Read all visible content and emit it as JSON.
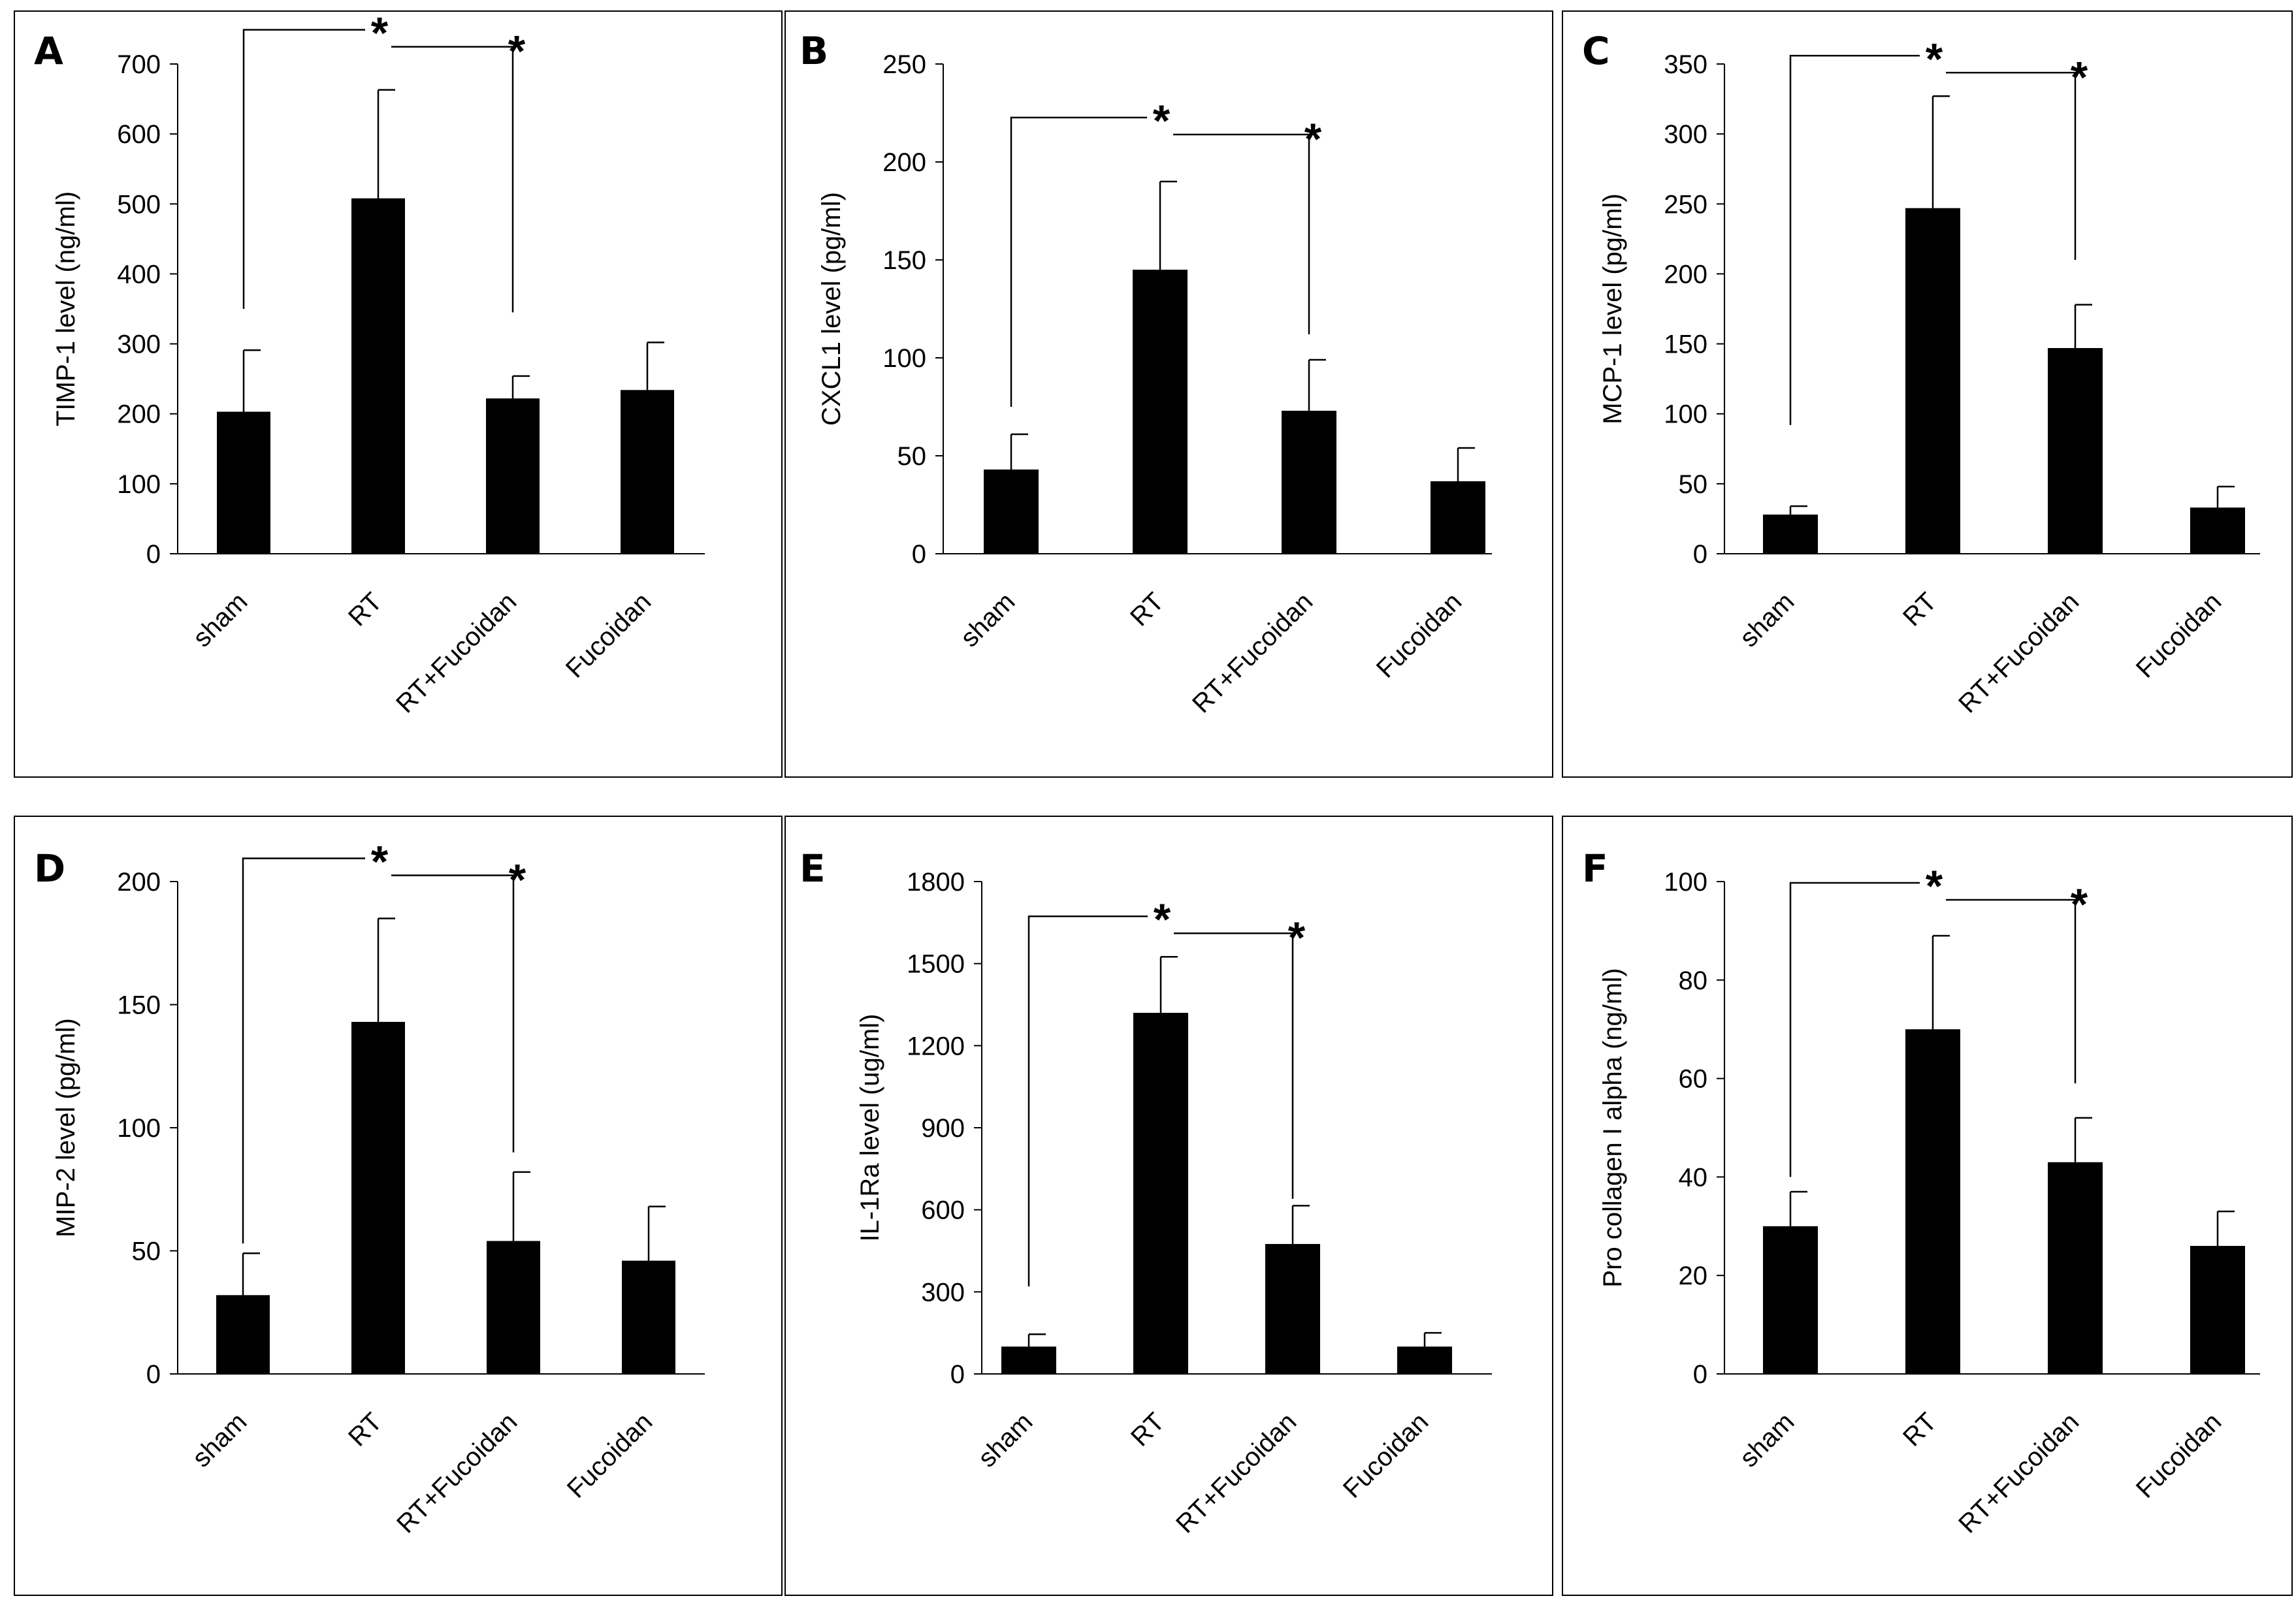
{
  "chart_data": [
    {
      "type": "bar",
      "panel_label": "A",
      "categories": [
        "sham",
        "RT",
        "RT+Fucoidan",
        "Fucoidan"
      ],
      "values": [
        203,
        508,
        222,
        234
      ],
      "errors": [
        88,
        155,
        32,
        68
      ],
      "ylabel": "TIMP-1 level (ng/ml)",
      "ylim": [
        0,
        700
      ],
      "yticks": [
        0,
        100,
        200,
        300,
        400,
        500,
        600,
        700
      ],
      "significance": [
        {
          "from": 0,
          "to": 1,
          "from_value": 350,
          "label": "*"
        },
        {
          "from": 1,
          "to": 2,
          "from_value": 690,
          "to_value": 345,
          "label": "*"
        }
      ]
    },
    {
      "type": "bar",
      "panel_label": "B",
      "categories": [
        "sham",
        "RT",
        "RT+Fucoidan",
        "Fucoidan"
      ],
      "values": [
        43,
        145,
        73,
        37
      ],
      "errors": [
        18,
        45,
        26,
        17
      ],
      "ylabel": "CXCL1 level (pg/ml)",
      "ylim": [
        0,
        250
      ],
      "yticks": [
        0,
        50,
        100,
        150,
        200,
        250
      ],
      "significance": [
        {
          "from": 0,
          "to": 1,
          "from_value": 75,
          "label": "*"
        },
        {
          "from": 1,
          "to": 2,
          "from_value": 200,
          "to_value": 112,
          "label": "*"
        }
      ]
    },
    {
      "type": "bar",
      "panel_label": "C",
      "categories": [
        "sham",
        "RT",
        "RT+Fucoidan",
        "Fucoidan"
      ],
      "values": [
        28,
        247,
        147,
        33
      ],
      "errors": [
        6,
        80,
        31,
        15
      ],
      "ylabel": "MCP-1 level (pg/ml)",
      "ylim": [
        0,
        350
      ],
      "yticks": [
        0,
        50,
        100,
        150,
        200,
        250,
        300,
        350
      ],
      "significance": [
        {
          "from": 0,
          "to": 1,
          "from_value": 92,
          "label": "*"
        },
        {
          "from": 1,
          "to": 2,
          "from_value": 330,
          "to_value": 210,
          "label": "*"
        }
      ]
    },
    {
      "type": "bar",
      "panel_label": "D",
      "categories": [
        "sham",
        "RT",
        "RT+Fucoidan",
        "Fucoidan"
      ],
      "values": [
        32,
        143,
        54,
        46
      ],
      "errors": [
        17,
        42,
        28,
        22
      ],
      "ylabel": "MIP-2 level (pg/ml)",
      "ylim": [
        0,
        200
      ],
      "yticks": [
        0,
        50,
        100,
        150,
        200
      ],
      "significance": [
        {
          "from": 0,
          "to": 1,
          "from_value": 53,
          "label": "*"
        },
        {
          "from": 1,
          "to": 2,
          "from_value": 189,
          "to_value": 90,
          "label": "*"
        }
      ]
    },
    {
      "type": "bar",
      "panel_label": "E",
      "categories": [
        "sham",
        "RT",
        "RT+Fucoidan",
        "Fucoidan"
      ],
      "values": [
        100,
        1320,
        475,
        100
      ],
      "errors": [
        45,
        205,
        140,
        50
      ],
      "ylabel": "IL-1Ra level (ug/ml)",
      "ylim": [
        0,
        1800
      ],
      "yticks": [
        0,
        300,
        600,
        900,
        1200,
        1500,
        1800
      ],
      "significance": [
        {
          "from": 0,
          "to": 1,
          "from_value": 320,
          "label": "*"
        },
        {
          "from": 1,
          "to": 2,
          "from_value": 1570,
          "to_value": 640,
          "label": "*"
        }
      ]
    },
    {
      "type": "bar",
      "panel_label": "F",
      "categories": [
        "sham",
        "RT",
        "RT+Fucoidan",
        "Fucoidan"
      ],
      "values": [
        30,
        70,
        43,
        26
      ],
      "errors": [
        7,
        19,
        9,
        7
      ],
      "ylabel": "Pro collagen I alpha (ng/ml)",
      "ylim": [
        0,
        100
      ],
      "yticks": [
        0,
        20,
        40,
        60,
        80,
        100
      ],
      "significance": [
        {
          "from": 0,
          "to": 1,
          "from_value": 40,
          "label": "*"
        },
        {
          "from": 1,
          "to": 2,
          "from_value": 95,
          "to_value": 59,
          "label": "*"
        }
      ]
    }
  ]
}
